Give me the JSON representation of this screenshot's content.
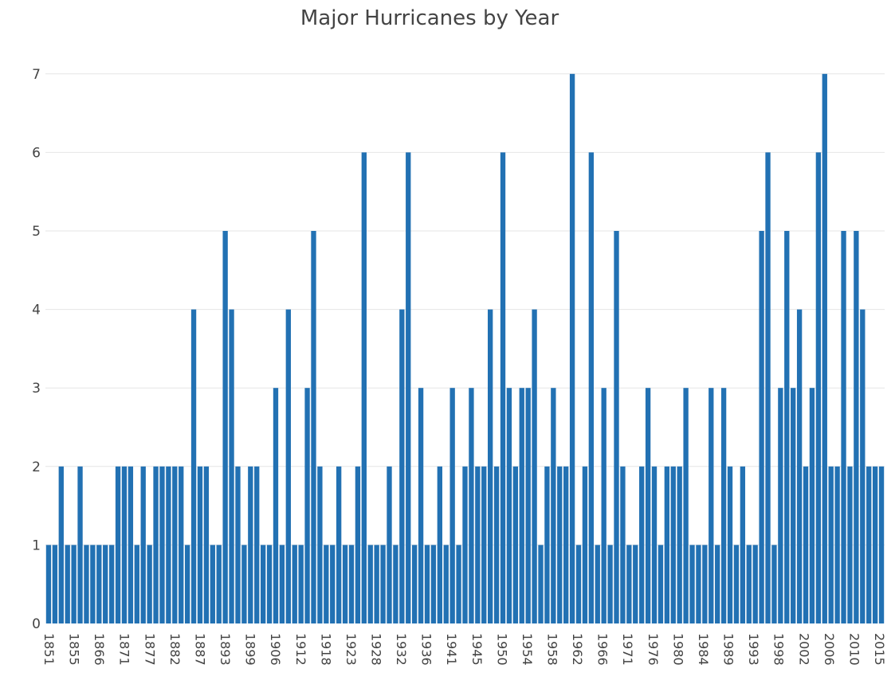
{
  "chart_data": {
    "type": "bar",
    "title": "Major Hurricanes by Year",
    "xlabel": "",
    "ylabel": "",
    "ylim": [
      0,
      7.15
    ],
    "yticks": [
      0,
      1,
      2,
      3,
      4,
      5,
      6,
      7
    ],
    "grid": true,
    "bar_color": "#2271b3",
    "x_tick_labels": [
      "1851",
      "1855",
      "1866",
      "1871",
      "1877",
      "1882",
      "1887",
      "1893",
      "1899",
      "1906",
      "1912",
      "1918",
      "1923",
      "1928",
      "1932",
      "1936",
      "1941",
      "1945",
      "1950",
      "1954",
      "1958",
      "1962",
      "1966",
      "1971",
      "1976",
      "1980",
      "1984",
      "1989",
      "1993",
      "1998",
      "2002",
      "2006",
      "2010",
      "2015"
    ],
    "values": [
      1,
      1,
      2,
      1,
      1,
      2,
      1,
      1,
      1,
      1,
      1,
      2,
      2,
      2,
      1,
      2,
      1,
      2,
      2,
      2,
      2,
      2,
      1,
      4,
      2,
      2,
      1,
      1,
      5,
      4,
      2,
      1,
      2,
      2,
      1,
      1,
      3,
      1,
      4,
      1,
      1,
      3,
      5,
      2,
      1,
      1,
      2,
      1,
      1,
      2,
      6,
      1,
      1,
      1,
      2,
      1,
      4,
      6,
      1,
      3,
      1,
      1,
      2,
      1,
      3,
      1,
      2,
      3,
      2,
      2,
      4,
      2,
      6,
      3,
      2,
      3,
      3,
      4,
      1,
      2,
      3,
      2,
      2,
      7,
      1,
      2,
      6,
      1,
      3,
      1,
      5,
      2,
      1,
      1,
      2,
      3,
      2,
      1,
      2,
      2,
      2,
      3,
      1,
      1,
      1,
      3,
      1,
      3,
      2,
      1,
      2,
      1,
      1,
      5,
      6,
      1,
      3,
      5,
      3,
      4,
      2,
      3,
      6,
      7,
      2,
      2,
      5,
      2,
      5,
      4,
      2,
      2,
      2
    ]
  }
}
